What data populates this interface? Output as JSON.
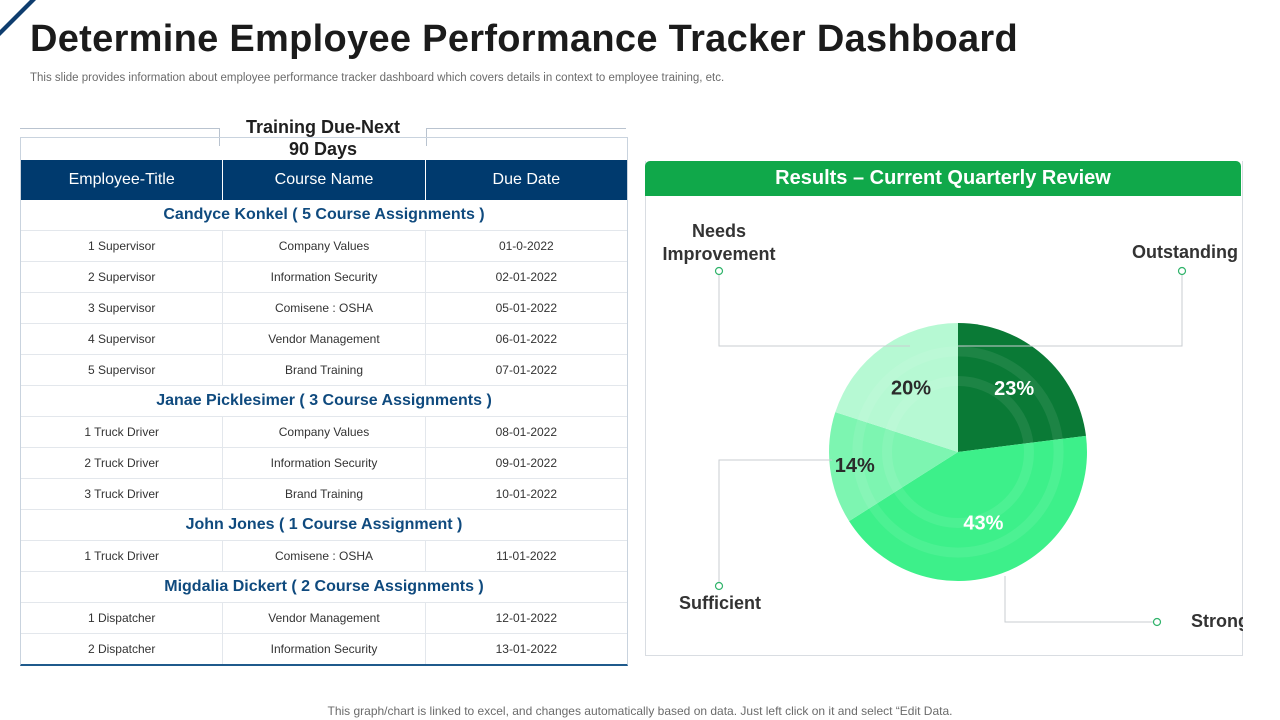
{
  "page": {
    "title": "Determine Employee Performance Tracker Dashboard",
    "subtitle": "This slide provides information about employee performance tracker dashboard which covers details in context to employee training, etc.",
    "footer": "This graph/chart is linked to excel,  and changes automatically based on data. Just left click on it and select “Edit Data."
  },
  "table": {
    "heading_line1": "Training Due-Next",
    "heading_line2": "90 Days",
    "columns": [
      "Employee-Title",
      "Course Name",
      "Due Date"
    ],
    "groups": [
      {
        "name": "Candyce Konkel ( 5 Course Assignments )",
        "rows": [
          [
            "1  Supervisor",
            "Company Values",
            "01-0-2022"
          ],
          [
            "2  Supervisor",
            "Information Security",
            "02-01-2022"
          ],
          [
            "3  Supervisor",
            "Comisene : OSHA",
            "05-01-2022"
          ],
          [
            "4  Supervisor",
            "Vendor Management",
            "06-01-2022"
          ],
          [
            "5  Supervisor",
            "Brand Training",
            "07-01-2022"
          ]
        ]
      },
      {
        "name": "Janae Picklesimer ( 3 Course Assignments )",
        "rows": [
          [
            "1 Truck Driver",
            "Company Values",
            "08-01-2022"
          ],
          [
            "2 Truck Driver",
            "Information Security",
            "09-01-2022"
          ],
          [
            "3 Truck Driver",
            "Brand Training",
            "10-01-2022"
          ]
        ]
      },
      {
        "name": "John Jones ( 1 Course Assignment )",
        "rows": [
          [
            "1 Truck Driver",
            "Comisene : OSHA",
            "11-01-2022"
          ]
        ]
      },
      {
        "name": "Migdalia Dickert ( 2 Course Assignments )",
        "rows": [
          [
            "1 Dispatcher",
            "Vendor Management",
            "12-01-2022"
          ],
          [
            "2 Dispatcher",
            "Information Security",
            "13-01-2022"
          ]
        ]
      }
    ]
  },
  "panel": {
    "title": "Results – Current Quarterly Review"
  },
  "chart_data": {
    "type": "pie",
    "title": "Results – Current Quarterly Review",
    "categories": [
      "Outstanding",
      "Strong",
      "Sufficient",
      "Needs Improvement"
    ],
    "values": [
      23,
      43,
      14,
      20
    ],
    "value_labels": [
      "23%",
      "43%",
      "14%",
      "20%"
    ],
    "callout_labels": [
      "Outstanding",
      "Strong",
      "Sufficient",
      "Needs Improvement"
    ],
    "colors": [
      "#0a7a36",
      "#3df08a",
      "#7df5b1",
      "#b6f9d3"
    ]
  },
  "colors": {
    "title_text": "#1b1b1b",
    "table_header_bg": "#003a6e",
    "group_text": "#0f4a7e",
    "panel_header_bg": "#10a84a",
    "corner_accent": "#0f3d6e"
  }
}
